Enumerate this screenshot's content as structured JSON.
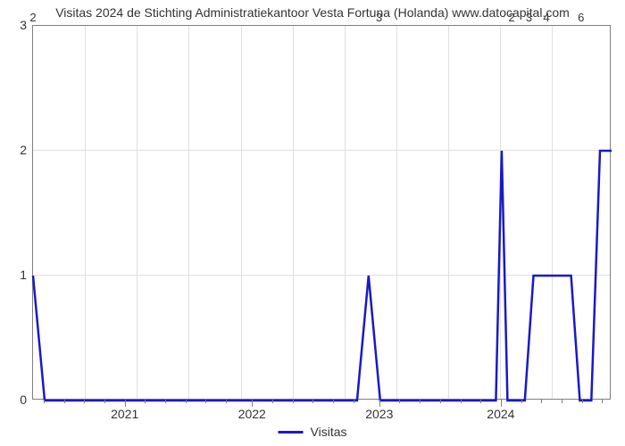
{
  "chart": {
    "type": "line",
    "title": "Visitas 2024 de Stichting Administratiekantoor Vesta Fortuna (Holanda) www.datocapital.com",
    "background_color": "#ffffff",
    "grid_color": "#e0e0e0",
    "border_color": "#7f7f7f",
    "line_color": "#1919c8",
    "line_width": 2.5,
    "title_fontsize": 14,
    "label_fontsize": 14,
    "legend_label": "Visitas",
    "ylim": [
      0,
      3
    ],
    "ytick_labels": [
      "0",
      "1",
      "2",
      "3"
    ],
    "ytick_positions_pct": [
      100,
      66.67,
      33.33,
      0
    ],
    "x_major_labels": [
      "2021",
      "2022",
      "2023",
      "2024"
    ],
    "x_major_positions_pct": [
      16.0,
      38.0,
      60.0,
      81.0
    ],
    "x_minor_positions_pct": [
      2.0,
      5.5,
      9.0,
      12.5,
      19.5,
      23.0,
      26.5,
      30.0,
      33.5,
      41.5,
      45.0,
      48.5,
      52.0,
      55.5,
      63.5,
      67.0,
      70.5,
      74.0,
      77.5,
      84.5,
      88.0,
      91.5,
      95.0,
      98.5
    ],
    "vgrid_positions_pct": [
      9.0,
      18.0,
      27.0,
      36.0,
      45.0,
      54.0,
      63.0,
      72.0,
      81.0,
      90.0
    ],
    "x_top_labels": [
      {
        "text": "2",
        "pos_pct": 0
      },
      {
        "text": "3",
        "pos_pct": 60.0
      },
      {
        "text": "2",
        "pos_pct": 83.0
      },
      {
        "text": "3",
        "pos_pct": 86.0
      },
      {
        "text": "4",
        "pos_pct": 89.0
      },
      {
        "text": "6",
        "pos_pct": 95.0
      }
    ],
    "series_points": [
      [
        0,
        1
      ],
      [
        2,
        0
      ],
      [
        56,
        0
      ],
      [
        58,
        1
      ],
      [
        60,
        0
      ],
      [
        80,
        0
      ],
      [
        81,
        2
      ],
      [
        82,
        0
      ],
      [
        85,
        0
      ],
      [
        86.5,
        1
      ],
      [
        93,
        1
      ],
      [
        94.5,
        0
      ],
      [
        96.5,
        0
      ],
      [
        98,
        2
      ],
      [
        100,
        2
      ]
    ]
  }
}
